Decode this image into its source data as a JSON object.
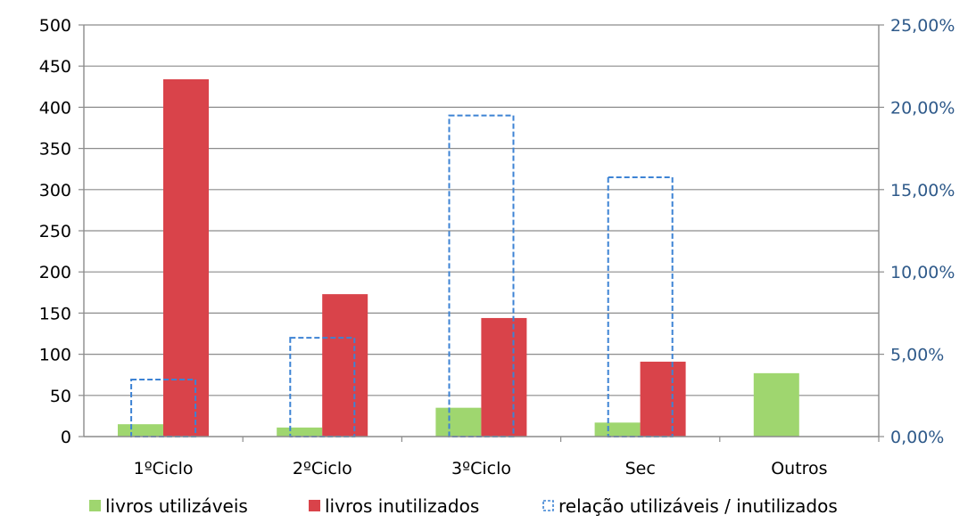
{
  "chart_data": {
    "type": "bar",
    "categories": [
      "1ºCiclo",
      "2ºCiclo",
      "3ºCiclo",
      "Sec",
      "Outros"
    ],
    "series": [
      {
        "name": "livros utilizáveis",
        "axis": "left",
        "style": "solid",
        "color": "#9fd66f",
        "values": [
          15,
          11,
          35,
          17,
          77
        ]
      },
      {
        "name": "livros inutilizados",
        "axis": "left",
        "style": "solid",
        "color": "#d9434a",
        "values": [
          434,
          173,
          144,
          91,
          0
        ]
      },
      {
        "name": "relação utilizáveis / inutilizados",
        "axis": "right",
        "style": "dashed-outline",
        "color": "#3d83d4",
        "values": [
          0.0346,
          0.06,
          0.195,
          0.1575,
          null
        ]
      }
    ],
    "y_left": {
      "min": 0,
      "max": 500,
      "ticks": [
        0,
        50,
        100,
        150,
        200,
        250,
        300,
        350,
        400,
        450,
        500
      ],
      "tick_labels": [
        "0",
        "50",
        "100",
        "150",
        "200",
        "250",
        "300",
        "350",
        "400",
        "450",
        "500"
      ]
    },
    "y_right": {
      "min": 0,
      "max": 0.25,
      "ticks": [
        0,
        0.05,
        0.1,
        0.15,
        0.2,
        0.25
      ],
      "tick_labels": [
        "0,00%",
        "5,00%",
        "10,00%",
        "15,00%",
        "20,00%",
        "25,00%"
      ],
      "color": "#2f5a8a"
    },
    "grid": true,
    "legend_position": "bottom"
  }
}
